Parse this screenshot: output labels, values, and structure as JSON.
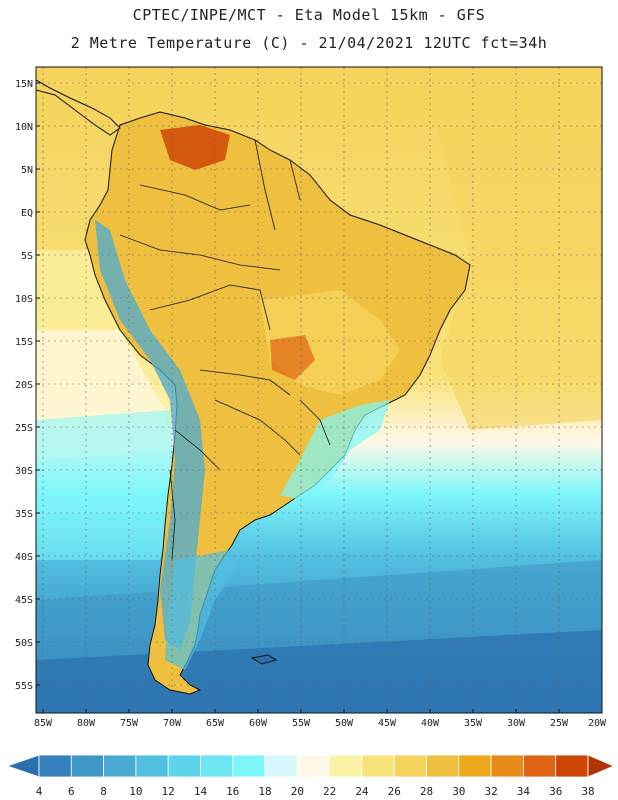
{
  "header": {
    "title_line1": "CPTEC/INPE/MCT -  Eta Model 15km - GFS",
    "title_line2": "2 Metre Temperature (C) - 21/04/2021 12UTC fct=34h"
  },
  "map": {
    "lat_labels": [
      "15N",
      "10N",
      "5N",
      "EQ",
      "5S",
      "10S",
      "15S",
      "20S",
      "25S",
      "30S",
      "35S",
      "40S",
      "45S",
      "50S",
      "55S"
    ],
    "lon_labels": [
      "85W",
      "80W",
      "75W",
      "70W",
      "65W",
      "60W",
      "55W",
      "50W",
      "45W",
      "40W",
      "35W",
      "30W",
      "25W",
      "20W"
    ]
  },
  "colorbar": {
    "labels": [
      "4",
      "6",
      "8",
      "10",
      "12",
      "14",
      "16",
      "18",
      "20",
      "22",
      "24",
      "26",
      "28",
      "30",
      "32",
      "34",
      "36",
      "38"
    ],
    "colors": [
      "#2b6fae",
      "#3580bd",
      "#3f97c7",
      "#49abd4",
      "#52bfe0",
      "#5dd4ea",
      "#6ee6f2",
      "#7ef7fb",
      "#d8f7fc",
      "#fff8e6",
      "#fbf2a4",
      "#f8e27a",
      "#f5d35e",
      "#efc03f",
      "#eda81c",
      "#e78a18",
      "#e06412",
      "#cf4707",
      "#b23306"
    ]
  }
}
